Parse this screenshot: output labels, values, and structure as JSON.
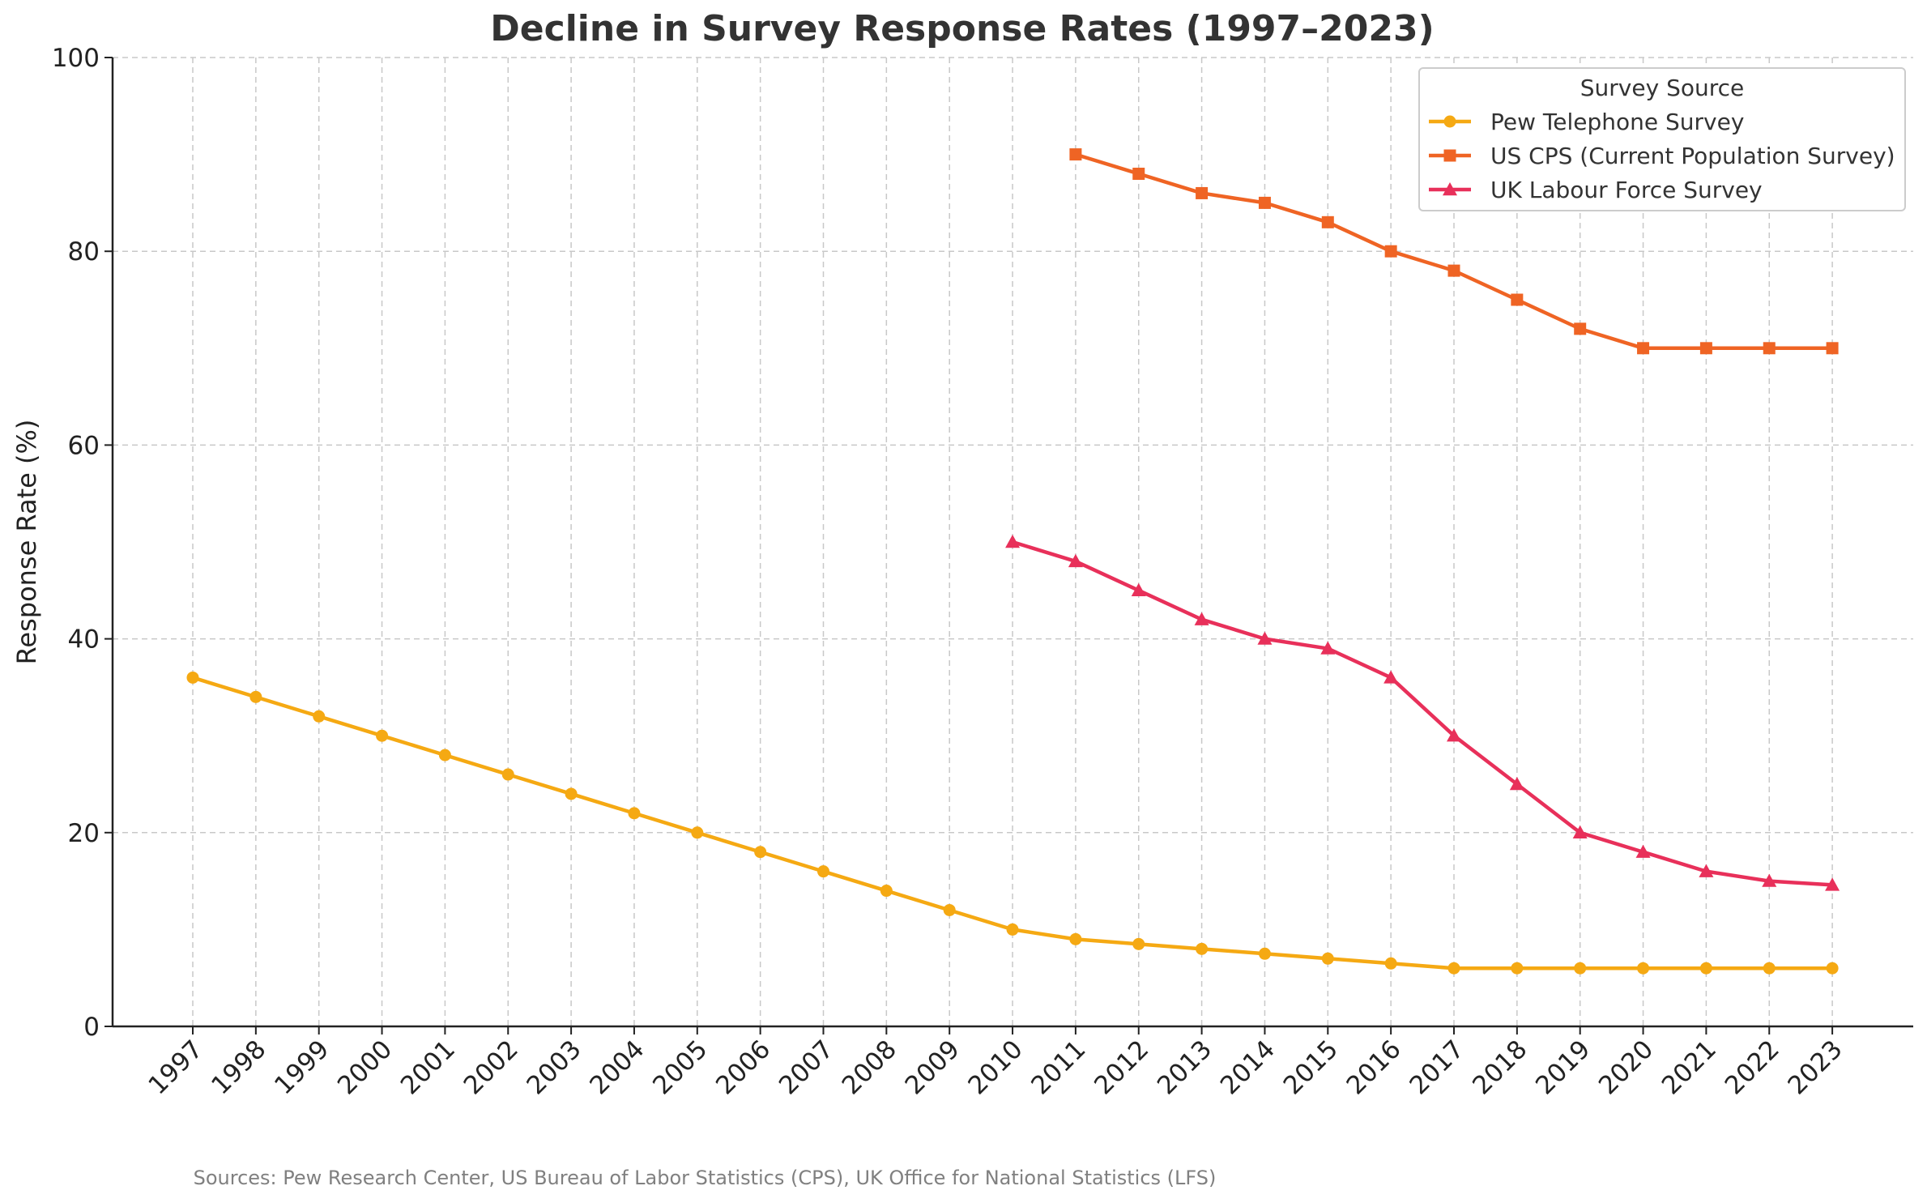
{
  "chart_data": {
    "type": "line",
    "title": "Decline in Survey Response Rates (1997–2023)",
    "xlabel": "",
    "ylabel": "Response Rate (%)",
    "ylim": [
      0,
      100
    ],
    "yticks": [
      "0",
      "20",
      "40",
      "60",
      "80",
      "100"
    ],
    "x": [
      "1997",
      "1998",
      "1999",
      "2000",
      "2001",
      "2002",
      "2003",
      "2004",
      "2005",
      "2006",
      "2007",
      "2008",
      "2009",
      "2010",
      "2011",
      "2012",
      "2013",
      "2014",
      "2015",
      "2016",
      "2017",
      "2018",
      "2019",
      "2020",
      "2021",
      "2022",
      "2023"
    ],
    "grid": true,
    "legend": {
      "title": "Survey Source",
      "position": "top-right"
    },
    "series": [
      {
        "name": "Pew Telephone Survey",
        "color": "#F5A913",
        "marker": "circle",
        "values": [
          36,
          34,
          32,
          30,
          28,
          26,
          24,
          22,
          20,
          18,
          16,
          14,
          12,
          10,
          9,
          8.5,
          8,
          7.5,
          7,
          6.5,
          6,
          6,
          6,
          6,
          6,
          6,
          6
        ]
      },
      {
        "name": "US CPS (Current Population Survey)",
        "color": "#EF6424",
        "marker": "square",
        "values": [
          null,
          null,
          null,
          null,
          null,
          null,
          null,
          null,
          null,
          null,
          null,
          null,
          null,
          null,
          90,
          88,
          86,
          85,
          83,
          80,
          78,
          75,
          72,
          70,
          70,
          70,
          70
        ]
      },
      {
        "name": "UK Labour Force Survey",
        "color": "#E8305A",
        "marker": "triangle",
        "values": [
          null,
          null,
          null,
          null,
          null,
          null,
          null,
          null,
          null,
          null,
          null,
          null,
          null,
          50,
          48,
          45,
          42,
          40,
          39,
          36,
          30,
          25,
          20,
          18,
          16,
          15,
          14.6
        ]
      }
    ],
    "source_note": "Sources: Pew Research Center, US Bureau of Labor Statistics (CPS), UK Office for National Statistics (LFS)"
  }
}
